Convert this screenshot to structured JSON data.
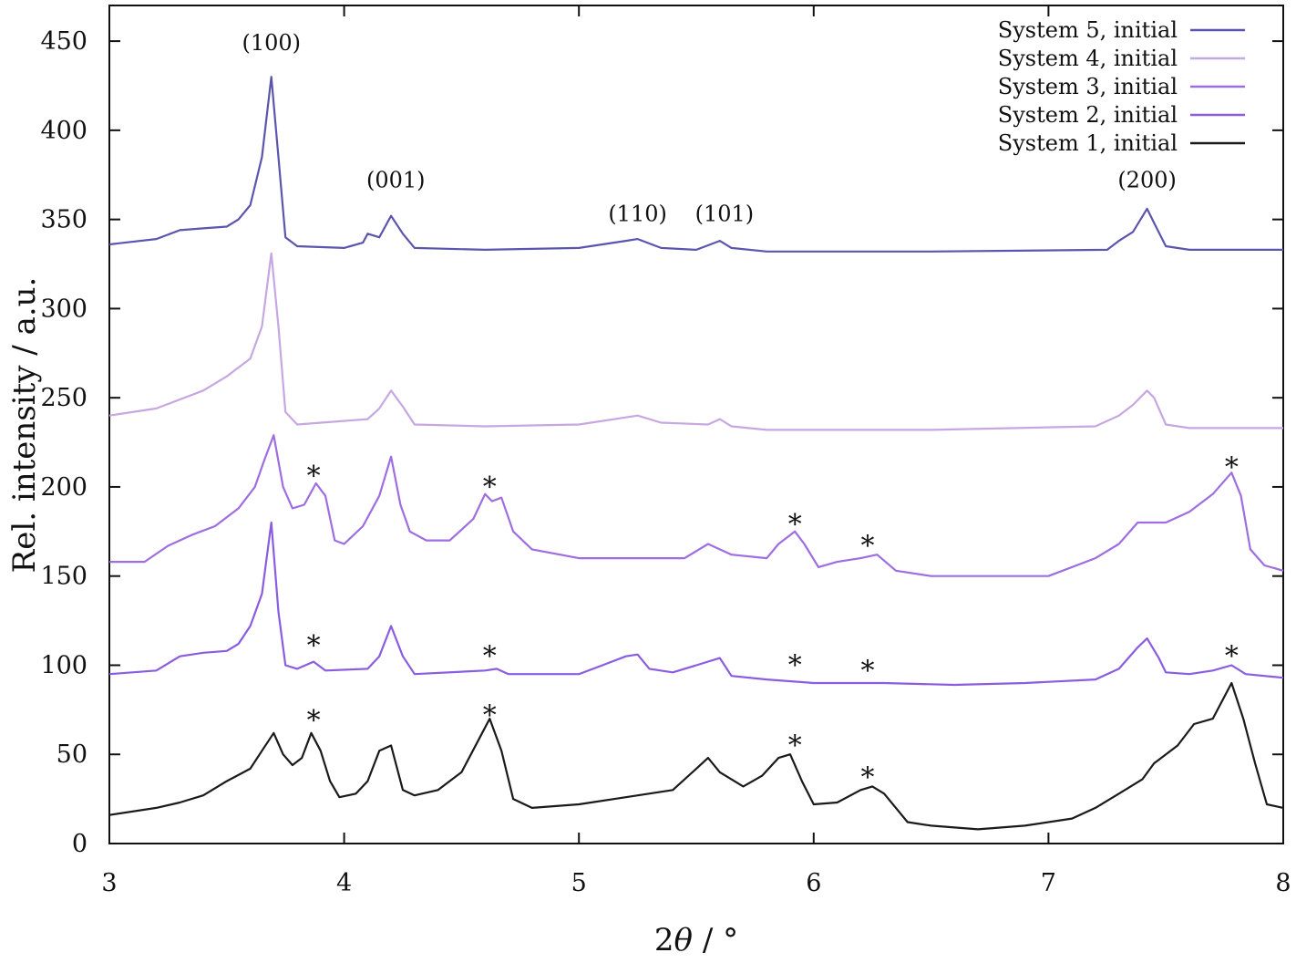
{
  "chart_data": {
    "type": "line",
    "xlabel_prefix": "2",
    "xlabel_symbol": "θ",
    "xlabel_suffix": " / °",
    "ylabel": "Rel. intensity / a.u.",
    "xlim": [
      3,
      8
    ],
    "ylim": [
      0,
      470
    ],
    "xticks": [
      "3",
      "4",
      "5",
      "6",
      "7",
      "8"
    ],
    "yticks": [
      "0",
      "50",
      "100",
      "150",
      "200",
      "250",
      "300",
      "350",
      "400",
      "450"
    ],
    "grid": false,
    "legend_position": "top-right",
    "series": [
      {
        "name": "System 5, initial",
        "color": "#5b55ae",
        "points": [
          [
            3.0,
            336
          ],
          [
            3.2,
            339
          ],
          [
            3.3,
            344
          ],
          [
            3.4,
            345
          ],
          [
            3.5,
            346
          ],
          [
            3.55,
            350
          ],
          [
            3.6,
            358
          ],
          [
            3.65,
            385
          ],
          [
            3.69,
            430
          ],
          [
            3.72,
            385
          ],
          [
            3.75,
            340
          ],
          [
            3.8,
            335
          ],
          [
            4.0,
            334
          ],
          [
            4.08,
            337
          ],
          [
            4.1,
            342
          ],
          [
            4.15,
            340
          ],
          [
            4.2,
            352
          ],
          [
            4.25,
            342
          ],
          [
            4.3,
            334
          ],
          [
            4.6,
            333
          ],
          [
            5.0,
            334
          ],
          [
            5.2,
            338
          ],
          [
            5.25,
            339
          ],
          [
            5.35,
            334
          ],
          [
            5.5,
            333
          ],
          [
            5.6,
            338
          ],
          [
            5.65,
            334
          ],
          [
            5.8,
            332
          ],
          [
            6.5,
            332
          ],
          [
            7.25,
            333
          ],
          [
            7.3,
            338
          ],
          [
            7.36,
            343
          ],
          [
            7.42,
            356
          ],
          [
            7.45,
            348
          ],
          [
            7.5,
            335
          ],
          [
            7.6,
            333
          ],
          [
            8.0,
            333
          ]
        ]
      },
      {
        "name": "System 4, initial",
        "color": "#c7a7e2",
        "points": [
          [
            3.0,
            240
          ],
          [
            3.2,
            244
          ],
          [
            3.4,
            254
          ],
          [
            3.5,
            262
          ],
          [
            3.6,
            272
          ],
          [
            3.65,
            290
          ],
          [
            3.69,
            331
          ],
          [
            3.72,
            290
          ],
          [
            3.75,
            242
          ],
          [
            3.8,
            235
          ],
          [
            4.1,
            238
          ],
          [
            4.15,
            244
          ],
          [
            4.2,
            254
          ],
          [
            4.25,
            245
          ],
          [
            4.3,
            235
          ],
          [
            4.6,
            234
          ],
          [
            5.0,
            235
          ],
          [
            5.2,
            239
          ],
          [
            5.25,
            240
          ],
          [
            5.35,
            236
          ],
          [
            5.55,
            235
          ],
          [
            5.6,
            238
          ],
          [
            5.65,
            234
          ],
          [
            5.8,
            232
          ],
          [
            6.5,
            232
          ],
          [
            7.2,
            234
          ],
          [
            7.3,
            240
          ],
          [
            7.36,
            246
          ],
          [
            7.42,
            254
          ],
          [
            7.45,
            250
          ],
          [
            7.5,
            235
          ],
          [
            7.6,
            233
          ],
          [
            8.0,
            233
          ]
        ]
      },
      {
        "name": "System 3, initial",
        "color": "#9e6ee0",
        "points": [
          [
            3.0,
            158
          ],
          [
            3.15,
            158
          ],
          [
            3.25,
            167
          ],
          [
            3.35,
            173
          ],
          [
            3.45,
            178
          ],
          [
            3.55,
            188
          ],
          [
            3.62,
            200
          ],
          [
            3.66,
            215
          ],
          [
            3.7,
            229
          ],
          [
            3.74,
            200
          ],
          [
            3.78,
            188
          ],
          [
            3.83,
            190
          ],
          [
            3.88,
            202
          ],
          [
            3.92,
            195
          ],
          [
            3.96,
            170
          ],
          [
            4.0,
            168
          ],
          [
            4.08,
            178
          ],
          [
            4.15,
            195
          ],
          [
            4.2,
            217
          ],
          [
            4.24,
            190
          ],
          [
            4.28,
            175
          ],
          [
            4.35,
            170
          ],
          [
            4.45,
            170
          ],
          [
            4.55,
            182
          ],
          [
            4.6,
            196
          ],
          [
            4.63,
            192
          ],
          [
            4.67,
            194
          ],
          [
            4.72,
            175
          ],
          [
            4.8,
            165
          ],
          [
            5.0,
            160
          ],
          [
            5.3,
            160
          ],
          [
            5.45,
            160
          ],
          [
            5.55,
            168
          ],
          [
            5.65,
            162
          ],
          [
            5.8,
            160
          ],
          [
            5.85,
            168
          ],
          [
            5.92,
            175
          ],
          [
            5.96,
            168
          ],
          [
            6.02,
            155
          ],
          [
            6.1,
            158
          ],
          [
            6.2,
            160
          ],
          [
            6.27,
            162
          ],
          [
            6.35,
            153
          ],
          [
            6.5,
            150
          ],
          [
            7.0,
            150
          ],
          [
            7.2,
            160
          ],
          [
            7.3,
            168
          ],
          [
            7.38,
            180
          ],
          [
            7.5,
            180
          ],
          [
            7.6,
            186
          ],
          [
            7.7,
            196
          ],
          [
            7.78,
            208
          ],
          [
            7.82,
            195
          ],
          [
            7.86,
            165
          ],
          [
            7.92,
            156
          ],
          [
            8.0,
            153
          ]
        ]
      },
      {
        "name": "System 2, initial",
        "color": "#8a5ce0",
        "points": [
          [
            3.0,
            95
          ],
          [
            3.2,
            97
          ],
          [
            3.3,
            105
          ],
          [
            3.4,
            107
          ],
          [
            3.5,
            108
          ],
          [
            3.55,
            112
          ],
          [
            3.6,
            122
          ],
          [
            3.65,
            140
          ],
          [
            3.69,
            180
          ],
          [
            3.72,
            130
          ],
          [
            3.75,
            100
          ],
          [
            3.8,
            98
          ],
          [
            3.87,
            102
          ],
          [
            3.92,
            97
          ],
          [
            4.1,
            98
          ],
          [
            4.15,
            105
          ],
          [
            4.2,
            122
          ],
          [
            4.25,
            105
          ],
          [
            4.3,
            95
          ],
          [
            4.6,
            97
          ],
          [
            4.65,
            98
          ],
          [
            4.7,
            95
          ],
          [
            5.0,
            95
          ],
          [
            5.1,
            100
          ],
          [
            5.2,
            105
          ],
          [
            5.25,
            106
          ],
          [
            5.3,
            98
          ],
          [
            5.4,
            96
          ],
          [
            5.5,
            100
          ],
          [
            5.6,
            104
          ],
          [
            5.65,
            94
          ],
          [
            5.8,
            92
          ],
          [
            6.0,
            90
          ],
          [
            6.3,
            90
          ],
          [
            6.6,
            89
          ],
          [
            6.9,
            90
          ],
          [
            7.2,
            92
          ],
          [
            7.3,
            98
          ],
          [
            7.38,
            110
          ],
          [
            7.42,
            115
          ],
          [
            7.47,
            104
          ],
          [
            7.5,
            96
          ],
          [
            7.6,
            95
          ],
          [
            7.7,
            97
          ],
          [
            7.78,
            100
          ],
          [
            7.84,
            95
          ],
          [
            8.0,
            93
          ]
        ]
      },
      {
        "name": "System 1, initial",
        "color": "#1a1a1a",
        "points": [
          [
            3.0,
            16
          ],
          [
            3.2,
            20
          ],
          [
            3.3,
            23
          ],
          [
            3.4,
            27
          ],
          [
            3.5,
            35
          ],
          [
            3.6,
            42
          ],
          [
            3.65,
            52
          ],
          [
            3.7,
            62
          ],
          [
            3.74,
            50
          ],
          [
            3.78,
            44
          ],
          [
            3.82,
            48
          ],
          [
            3.86,
            62
          ],
          [
            3.9,
            52
          ],
          [
            3.94,
            35
          ],
          [
            3.98,
            26
          ],
          [
            4.05,
            28
          ],
          [
            4.1,
            35
          ],
          [
            4.15,
            52
          ],
          [
            4.2,
            55
          ],
          [
            4.25,
            30
          ],
          [
            4.3,
            27
          ],
          [
            4.4,
            30
          ],
          [
            4.5,
            40
          ],
          [
            4.58,
            60
          ],
          [
            4.62,
            70
          ],
          [
            4.67,
            52
          ],
          [
            4.72,
            25
          ],
          [
            4.8,
            20
          ],
          [
            5.0,
            22
          ],
          [
            5.2,
            26
          ],
          [
            5.4,
            30
          ],
          [
            5.5,
            42
          ],
          [
            5.55,
            48
          ],
          [
            5.6,
            40
          ],
          [
            5.7,
            32
          ],
          [
            5.78,
            38
          ],
          [
            5.85,
            48
          ],
          [
            5.9,
            50
          ],
          [
            5.95,
            35
          ],
          [
            6.0,
            22
          ],
          [
            6.1,
            23
          ],
          [
            6.2,
            30
          ],
          [
            6.25,
            32
          ],
          [
            6.3,
            28
          ],
          [
            6.4,
            12
          ],
          [
            6.5,
            10
          ],
          [
            6.7,
            8
          ],
          [
            6.9,
            10
          ],
          [
            7.1,
            14
          ],
          [
            7.2,
            20
          ],
          [
            7.3,
            28
          ],
          [
            7.4,
            36
          ],
          [
            7.45,
            45
          ],
          [
            7.55,
            55
          ],
          [
            7.62,
            67
          ],
          [
            7.7,
            70
          ],
          [
            7.78,
            90
          ],
          [
            7.83,
            70
          ],
          [
            7.88,
            45
          ],
          [
            7.93,
            22
          ],
          [
            8.0,
            20
          ]
        ]
      }
    ],
    "annotations": [
      {
        "text": "(100)",
        "x": 3.69,
        "y": 445
      },
      {
        "text": "(001)",
        "x": 4.22,
        "y": 368
      },
      {
        "text": "(110)",
        "x": 5.25,
        "y": 349
      },
      {
        "text": "(101)",
        "x": 5.62,
        "y": 349
      },
      {
        "text": "(200)",
        "x": 7.42,
        "y": 368
      }
    ],
    "star_marker": "*",
    "stars": [
      {
        "x": 3.87,
        "y": 207
      },
      {
        "x": 4.62,
        "y": 201
      },
      {
        "x": 5.92,
        "y": 180
      },
      {
        "x": 6.23,
        "y": 168
      },
      {
        "x": 7.78,
        "y": 212
      },
      {
        "x": 3.87,
        "y": 112
      },
      {
        "x": 4.62,
        "y": 106
      },
      {
        "x": 5.92,
        "y": 101
      },
      {
        "x": 6.23,
        "y": 98
      },
      {
        "x": 7.78,
        "y": 106
      },
      {
        "x": 3.87,
        "y": 70
      },
      {
        "x": 4.62,
        "y": 73
      },
      {
        "x": 5.92,
        "y": 56
      },
      {
        "x": 6.23,
        "y": 38
      }
    ]
  }
}
